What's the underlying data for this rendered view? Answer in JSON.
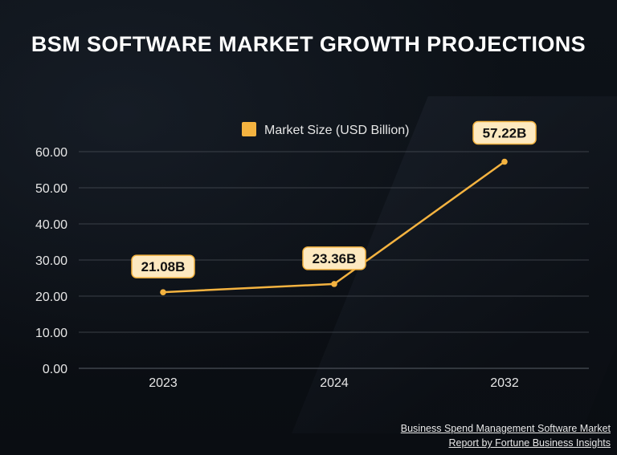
{
  "chart_data": {
    "type": "line",
    "title": "BSM SOFTWARE MARKET GROWTH PROJECTIONS",
    "categories": [
      "2023",
      "2024",
      "2032"
    ],
    "series": [
      {
        "name": "Market Size (USD Billion)",
        "values": [
          21.08,
          23.36,
          57.22
        ],
        "labels": [
          "21.08B",
          "23.36B",
          "57.22B"
        ]
      }
    ],
    "yticks": [
      "0.00",
      "10.00",
      "20.00",
      "30.00",
      "40.00",
      "50.00",
      "60.00"
    ],
    "ylim": [
      0,
      60
    ],
    "xlabel": "",
    "ylabel": "",
    "grid": true,
    "legend_position": "top-center"
  },
  "colors": {
    "accent": "#f4b340",
    "label_bg": "#fde9c0",
    "label_text": "#111111",
    "grid": "#4a4f57",
    "axis_text": "#e6e6e6"
  },
  "source": {
    "line1": "Business Spend Management Software Market",
    "line2": "Report by Fortune Business Insights"
  }
}
